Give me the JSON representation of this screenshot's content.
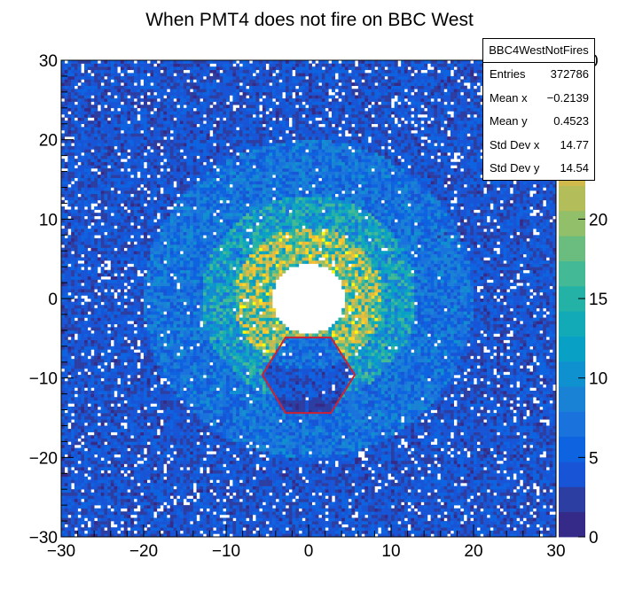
{
  "chart_data": {
    "type": "heatmap",
    "title": "When PMT4 does not fire on BBC West",
    "xlabel": "",
    "ylabel": "",
    "xlim": [
      -30,
      30
    ],
    "ylim": [
      -30,
      30
    ],
    "x_ticks": [
      "−30",
      "−20",
      "−10",
      "0",
      "10",
      "20",
      "30"
    ],
    "y_ticks": [
      "−30",
      "−20",
      "−10",
      "0",
      "10",
      "20",
      "30"
    ],
    "z_range": [
      0,
      30
    ],
    "z_ticks": [
      "0",
      "5",
      "10",
      "15",
      "20"
    ],
    "z_max_label_partial": "0",
    "grid": false,
    "distribution": {
      "hole_radius": 4.4,
      "inner_ring": [
        4.4,
        9.0
      ],
      "middle_ring": [
        9.0,
        13.0
      ],
      "outer_ring": [
        13.0,
        20.0
      ],
      "inner_ring_level": 20,
      "middle_ring_level": 12,
      "outer_ring_level": 7,
      "background_level": 4
    },
    "annotation": {
      "shape": "hexagon",
      "color": "#cc2233",
      "center": [
        0.2,
        -9.7
      ],
      "vertices": [
        [
          -5.6,
          -9.6
        ],
        [
          -2.8,
          -4.9
        ],
        [
          2.7,
          -4.9
        ],
        [
          5.6,
          -9.6
        ],
        [
          2.7,
          -14.4
        ],
        [
          -2.8,
          -14.4
        ]
      ]
    },
    "palette": [
      "#352a87",
      "#2d3ea2",
      "#1855d6",
      "#0d63e0",
      "#1a72dd",
      "#1a82d5",
      "#0f91d0",
      "#09a0c6",
      "#12aab7",
      "#24b2a6",
      "#44b995",
      "#6abd7e",
      "#91bf6a",
      "#b3bd5a",
      "#d0ba4b",
      "#e3b940",
      "#f5c232",
      "#f8d528",
      "#f9fb0e"
    ]
  },
  "stats": {
    "title": "BBC4WestNotFires",
    "rows": [
      {
        "label": "Entries",
        "value": "372786"
      },
      {
        "label": "Mean x",
        "value": "−0.2139"
      },
      {
        "label": "Mean y",
        "value": "0.4523"
      },
      {
        "label": "Std Dev x",
        "value": "14.77"
      },
      {
        "label": "Std Dev y",
        "value": "14.54"
      }
    ]
  }
}
